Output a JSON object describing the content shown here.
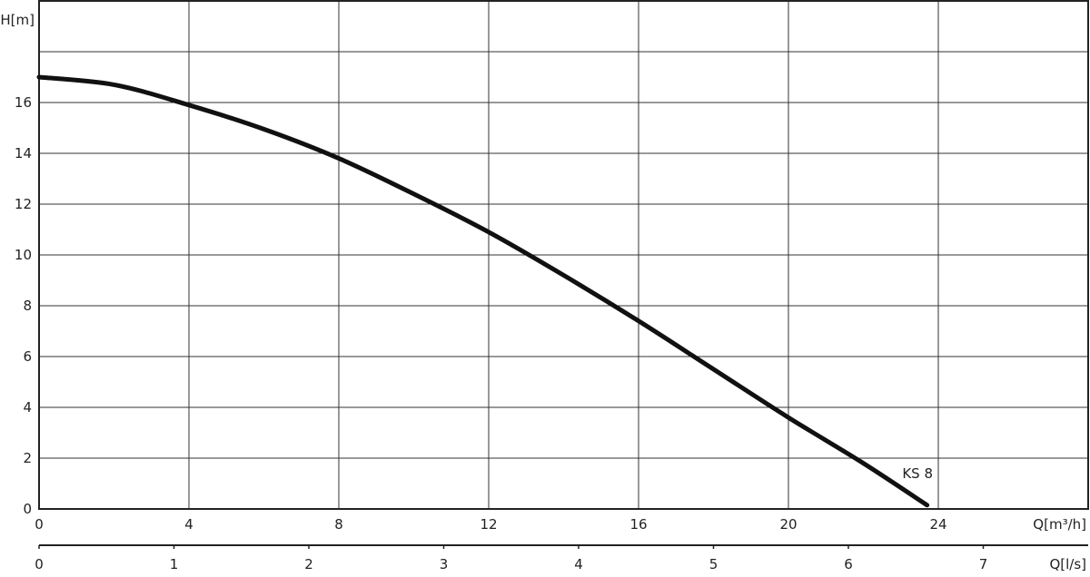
{
  "chart_data": {
    "type": "line",
    "title": "",
    "ylabel": "H[m]",
    "xlabel": "Q[m³/h]",
    "x2label": "Q[l/s]",
    "xlim": [
      0,
      28
    ],
    "ylim": [
      0,
      20
    ],
    "x2lim": [
      0,
      7.78
    ],
    "xticks": [
      0,
      4,
      8,
      12,
      16,
      20,
      24
    ],
    "yticks": [
      0,
      2,
      4,
      6,
      8,
      10,
      12,
      14,
      16
    ],
    "x2ticks": [
      0,
      1,
      2,
      3,
      4,
      5,
      6,
      7
    ],
    "grid": true,
    "series": [
      {
        "name": "KS 8",
        "color": "#111111",
        "x": [
          0,
          2,
          4,
          6,
          8,
          10,
          12,
          14,
          16,
          18,
          20,
          22,
          23.7
        ],
        "y": [
          17.0,
          16.7,
          15.9,
          14.95,
          13.8,
          12.4,
          10.9,
          9.2,
          7.4,
          5.5,
          3.6,
          1.8,
          0.15
        ]
      }
    ]
  }
}
